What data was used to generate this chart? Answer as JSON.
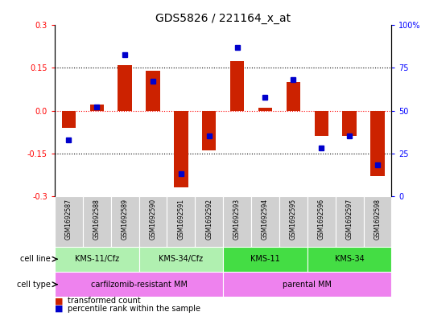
{
  "title": "GDS5826 / 221164_x_at",
  "samples": [
    "GSM1692587",
    "GSM1692588",
    "GSM1692589",
    "GSM1692590",
    "GSM1692591",
    "GSM1692592",
    "GSM1692593",
    "GSM1692594",
    "GSM1692595",
    "GSM1692596",
    "GSM1692597",
    "GSM1692598"
  ],
  "transformed_count": [
    -0.06,
    0.02,
    0.16,
    0.14,
    -0.27,
    -0.14,
    0.175,
    0.01,
    0.1,
    -0.09,
    -0.09,
    -0.23
  ],
  "percentile_rank": [
    33,
    52,
    83,
    67,
    13,
    35,
    87,
    58,
    68,
    28,
    35,
    18
  ],
  "cell_line_groups": [
    {
      "label": "KMS-11/Cfz",
      "start": 0,
      "end": 3,
      "color": "#b0f0b0"
    },
    {
      "label": "KMS-34/Cfz",
      "start": 3,
      "end": 6,
      "color": "#b0f0b0"
    },
    {
      "label": "KMS-11",
      "start": 6,
      "end": 9,
      "color": "#44dd44"
    },
    {
      "label": "KMS-34",
      "start": 9,
      "end": 12,
      "color": "#44dd44"
    }
  ],
  "cell_type_groups": [
    {
      "label": "carfilzomib-resistant MM",
      "start": 0,
      "end": 6,
      "color": "#ee82ee"
    },
    {
      "label": "parental MM",
      "start": 6,
      "end": 12,
      "color": "#ee82ee"
    }
  ],
  "ylim_left": [
    -0.3,
    0.3
  ],
  "ylim_right": [
    0,
    100
  ],
  "yticks_left": [
    -0.3,
    -0.15,
    0.0,
    0.15,
    0.3
  ],
  "yticks_right": [
    0,
    25,
    50,
    75,
    100
  ],
  "bar_color": "#cc2200",
  "dot_color": "#0000cc",
  "bar_width": 0.5,
  "legend_items": [
    {
      "label": "transformed count",
      "color": "#cc2200"
    },
    {
      "label": "percentile rank within the sample",
      "color": "#0000cc"
    }
  ]
}
